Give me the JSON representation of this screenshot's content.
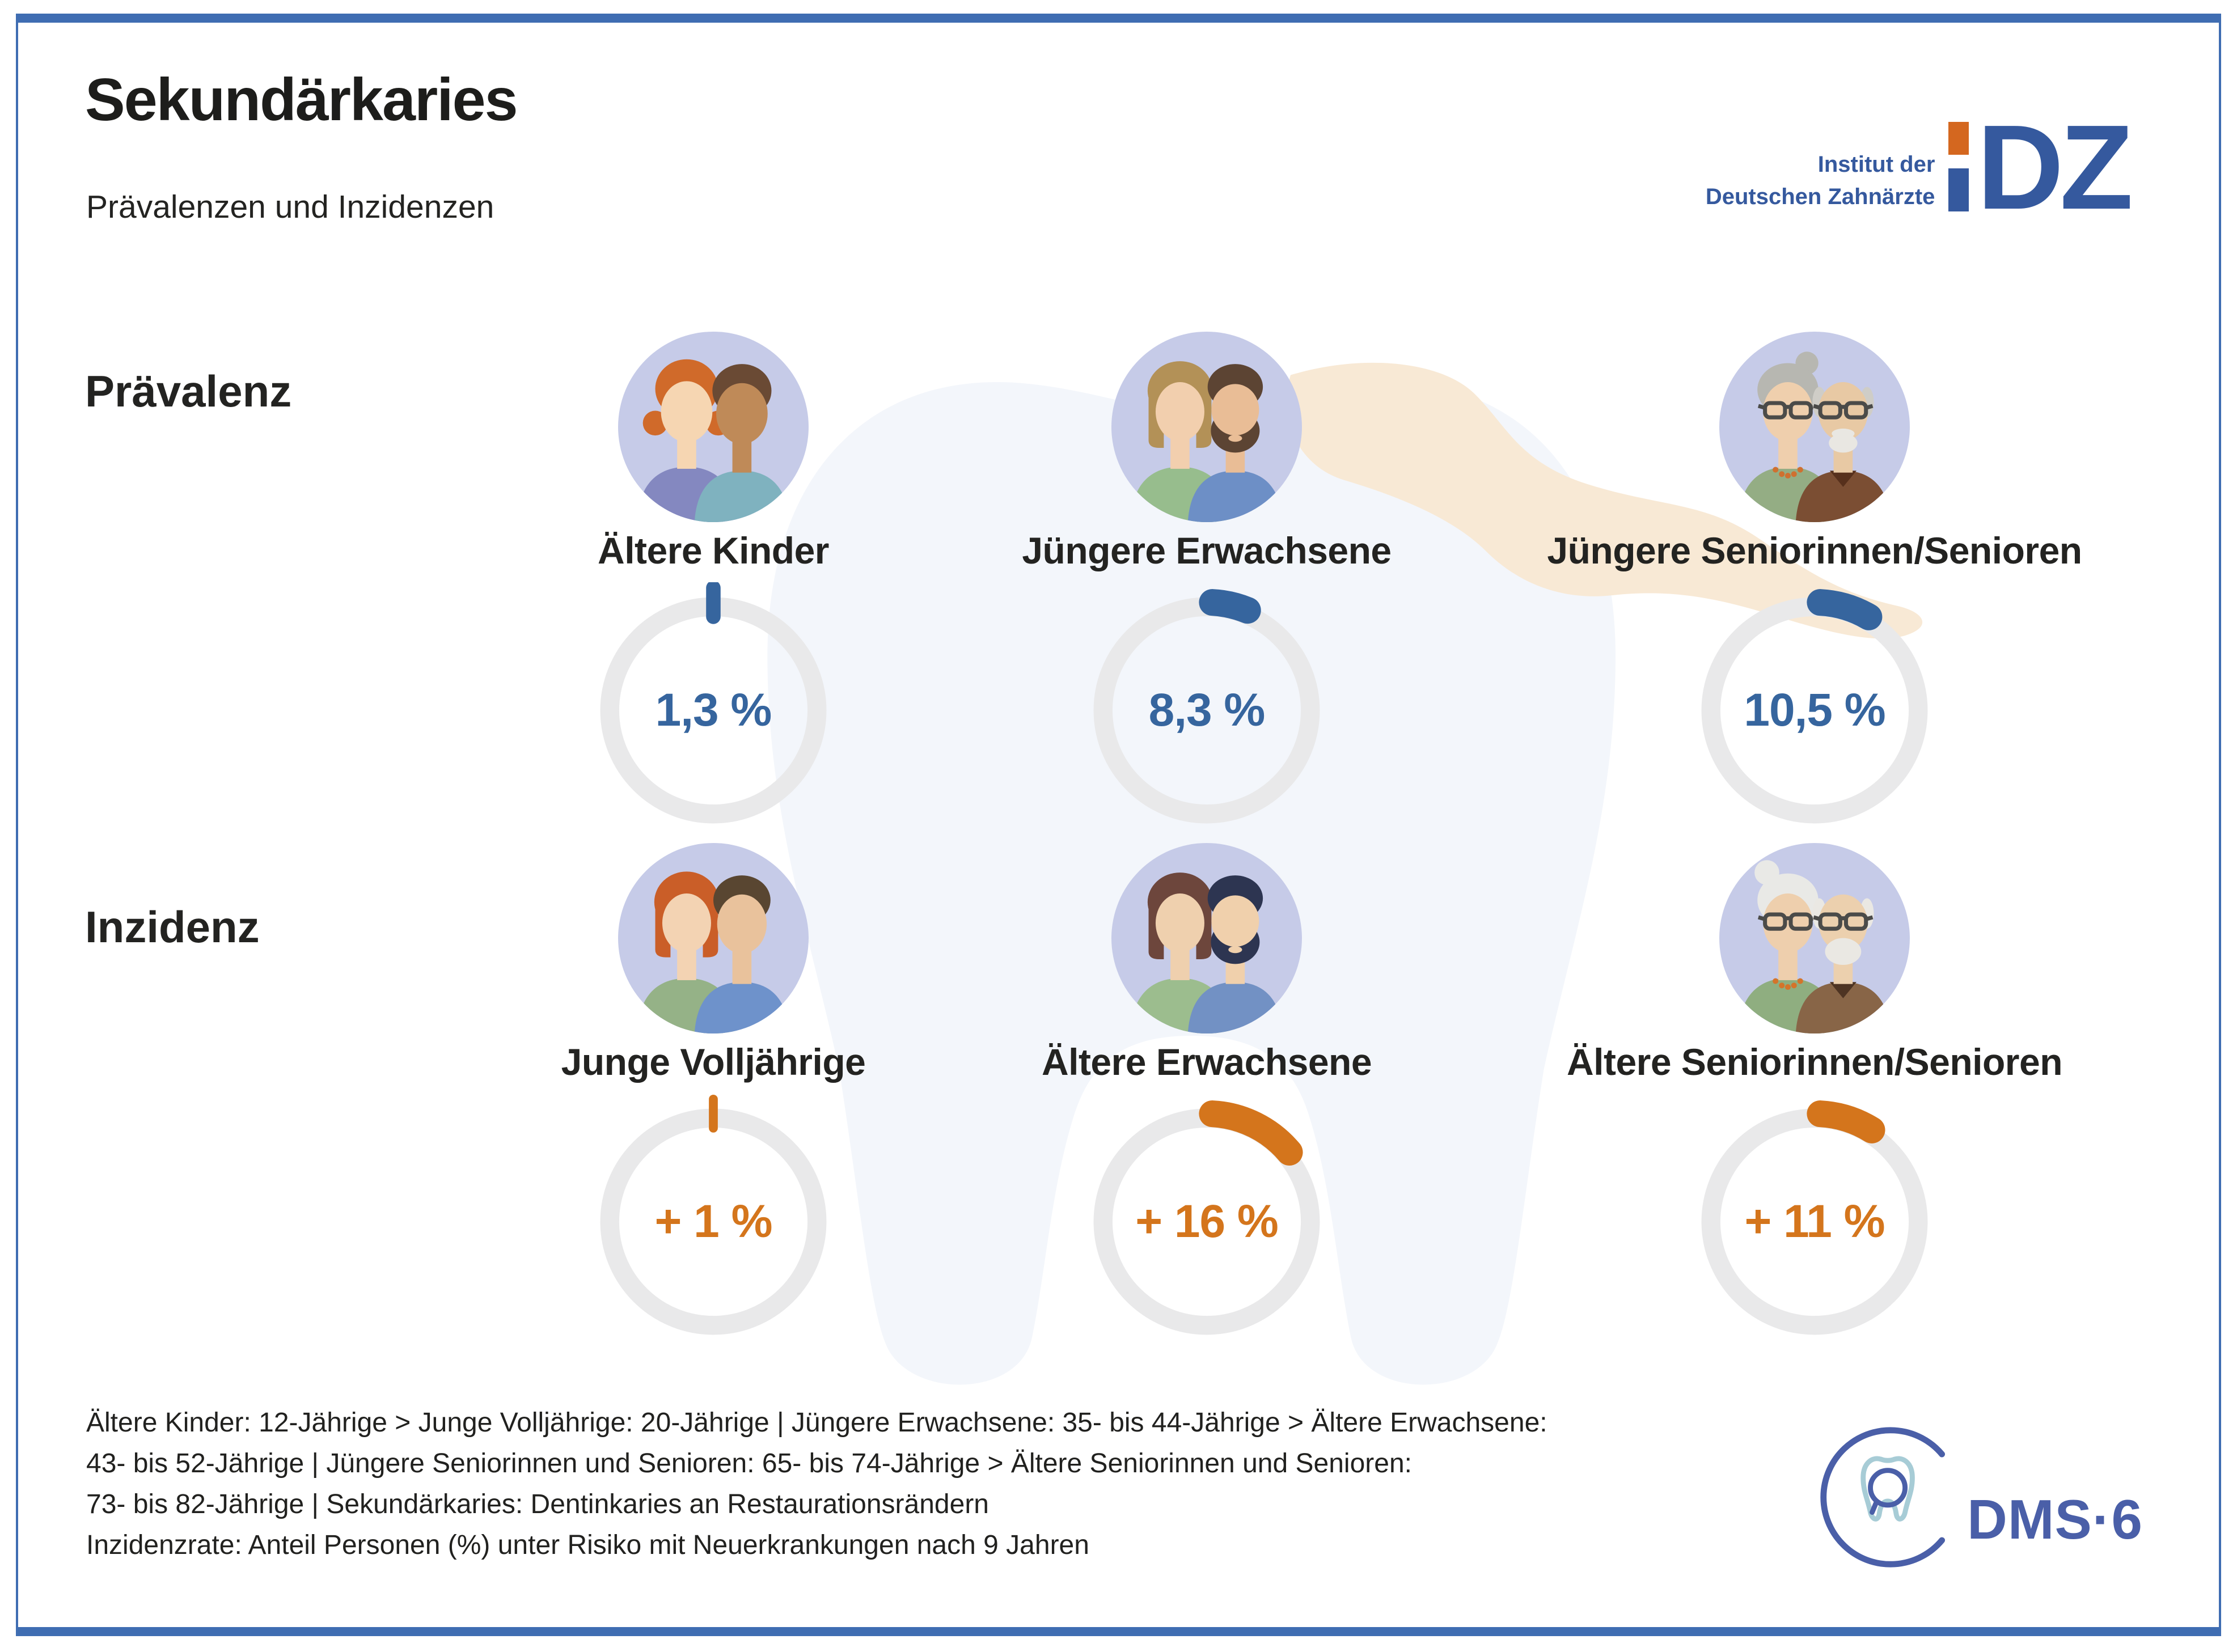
{
  "header": {
    "title": "Sekundärkaries",
    "subtitle": "Prävalenzen und Inzidenzen"
  },
  "idz_logo": {
    "line1": "Institut der",
    "line2": "Deutschen Zahnärzte",
    "mark": "DZ",
    "blue": "#35599e",
    "orange": "#d4671f"
  },
  "rows": [
    {
      "label": "Prävalenz",
      "accent": "#36659e",
      "groups": [
        {
          "name": "Ältere Kinder",
          "value": "1,3 %",
          "pct": 1.3
        },
        {
          "name": "Jüngere Erwachsene",
          "value": "8,3 %",
          "pct": 8.3
        },
        {
          "name": "Jüngere Seniorinnen/Senioren",
          "value": "10,5 %",
          "pct": 10.5
        }
      ]
    },
    {
      "label": "Inzidenz",
      "accent": "#d4751c",
      "groups": [
        {
          "name": "Junge Volljährige",
          "value": "+ 1 %",
          "pct": 1
        },
        {
          "name": "Ältere Erwachsene",
          "value": "+ 16 %",
          "pct": 16
        },
        {
          "name": "Ältere Seniorinnen/Senioren",
          "value": "+ 11 %",
          "pct": 11
        }
      ]
    }
  ],
  "footnote": {
    "lines": [
      "Ältere Kinder: 12-Jährige > Junge Volljährige: 20-Jährige | Jüngere Erwachsene: 35- bis 44-Jährige > Ältere Erwachsene:",
      "43- bis 52-Jährige | Jüngere Seniorinnen und Senioren: 65- bis 74-Jährige > Ältere Seniorinnen und Senioren:",
      "73- bis 82-Jährige | Sekundärkaries: Dentinkaries an Restaurationsrändern",
      "Inzidenzrate: Anteil Personen (%) unter Risiko mit Neuerkrankungen nach 9 Jahren"
    ]
  },
  "dms_logo": {
    "text": "DMS·6"
  },
  "theme": {
    "accent_blue": "#36659e",
    "accent_orange": "#d4751c",
    "ring_gray": "#e9e9ea",
    "frame_blue": "#3f6db2",
    "avatar_bg": "#c6cbe8",
    "tooth_bg": "#f3f6fb",
    "swoosh_peach": "#f8e9d5"
  },
  "chart_data": {
    "type": "pie",
    "title": "Sekundärkaries — Prävalenzen und Inzidenzen",
    "subtype": "donut-progress",
    "unit": "%",
    "legend_position": "none",
    "series": [
      {
        "name": "Prävalenz",
        "color": "#36659e",
        "categories": [
          "Ältere Kinder",
          "Jüngere Erwachsene",
          "Jüngere Seniorinnen/Senioren"
        ],
        "values": [
          1.3,
          8.3,
          10.5
        ],
        "labels": [
          "1,3 %",
          "8,3 %",
          "10,5 %"
        ]
      },
      {
        "name": "Inzidenz",
        "color": "#d4751c",
        "categories": [
          "Junge Volljährige",
          "Ältere Erwachsene",
          "Ältere Seniorinnen/Senioren"
        ],
        "values": [
          1,
          16,
          11
        ],
        "labels": [
          "+ 1 %",
          "+ 16 %",
          "+ 11 %"
        ]
      }
    ]
  }
}
